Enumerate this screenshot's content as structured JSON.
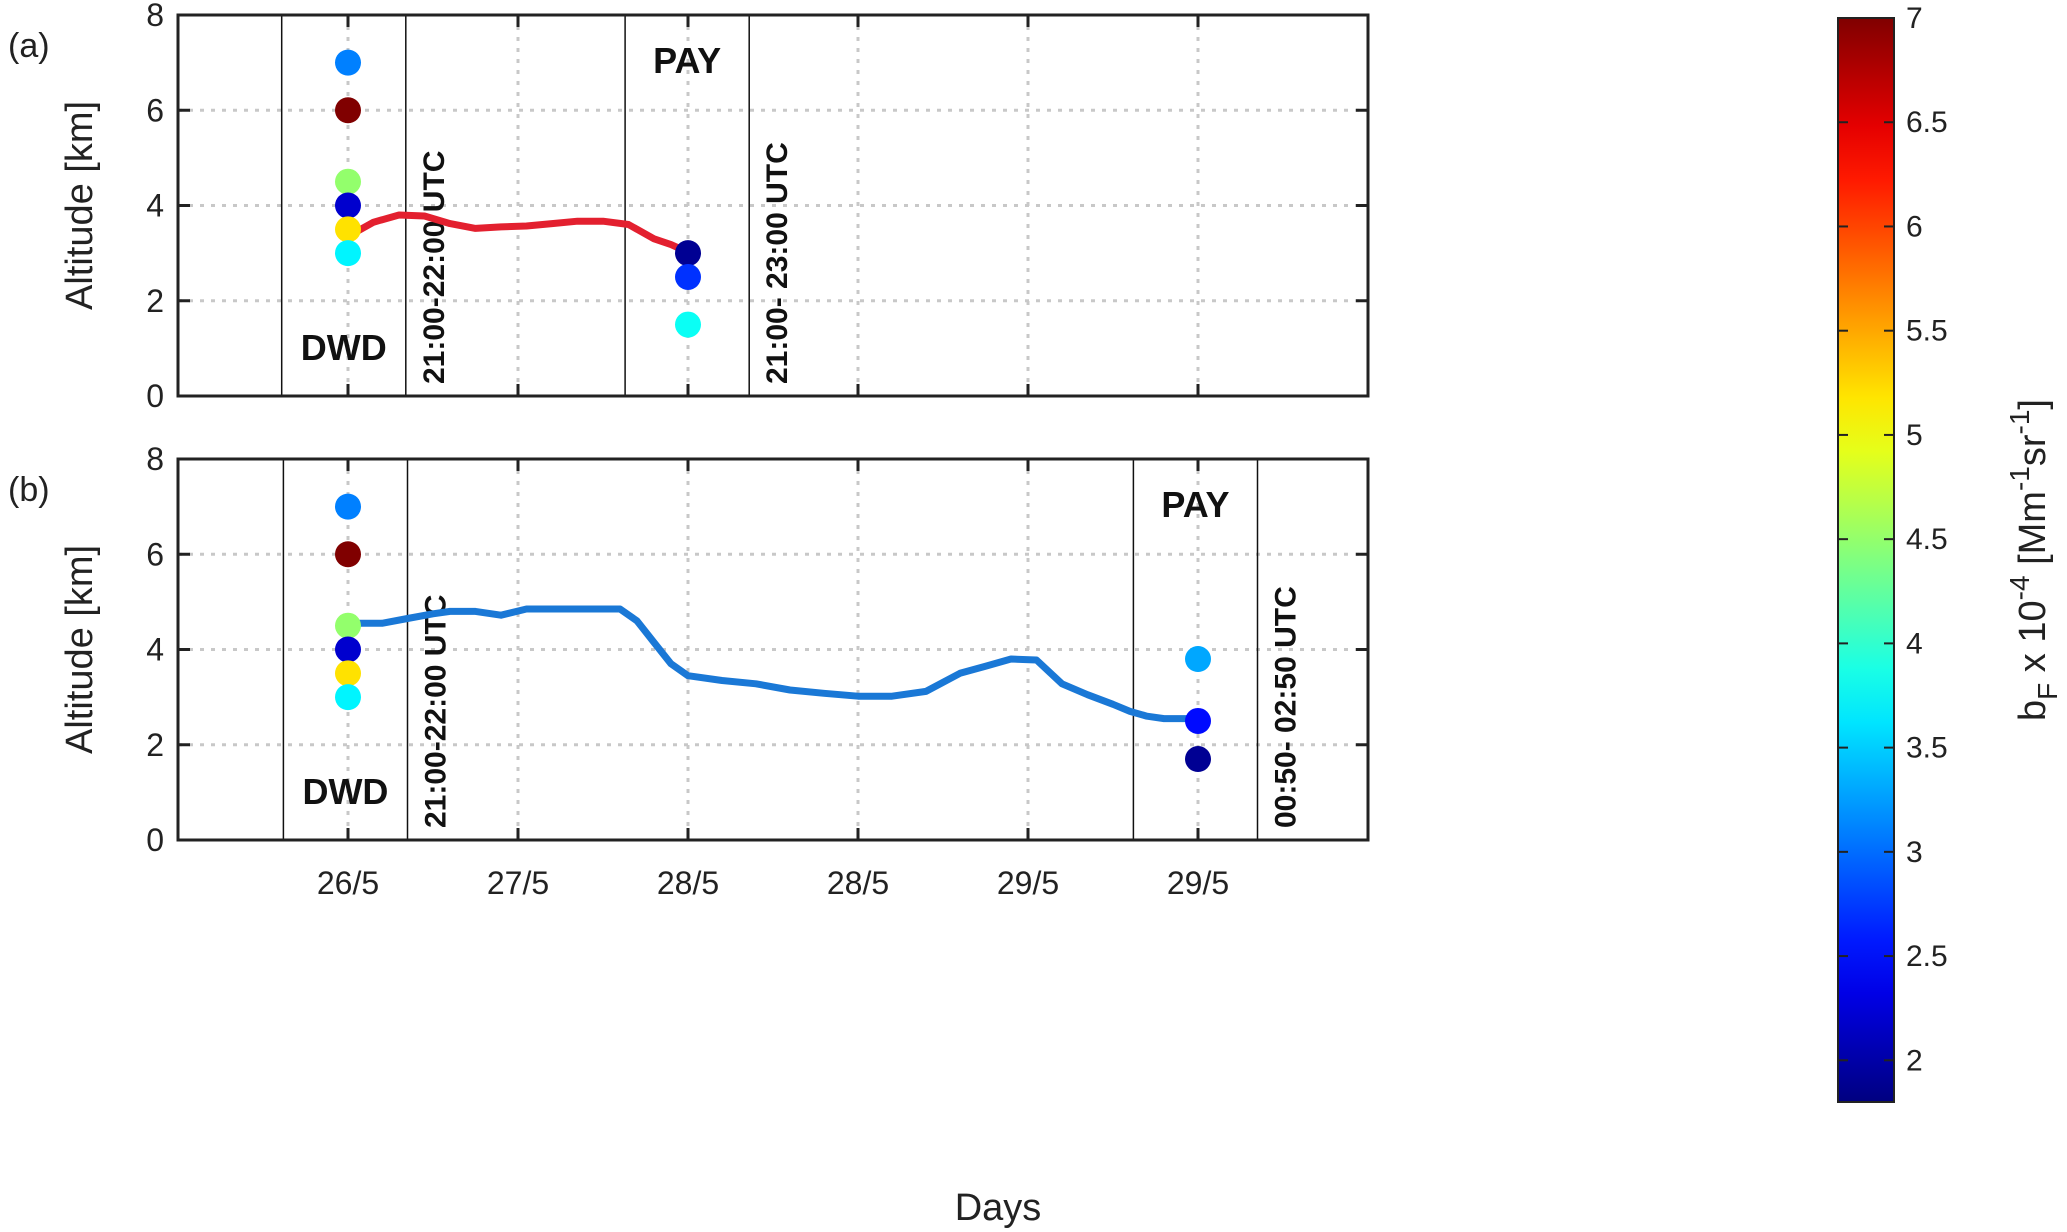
{
  "chart_data": [
    {
      "type": "line",
      "panel_label": "(a)",
      "ylabel": "Altitude [km]",
      "ylim": [
        0,
        8
      ],
      "yticks": [
        0,
        2,
        4,
        6,
        8
      ],
      "xlim": [
        0,
        7
      ],
      "xticks": [
        1,
        2,
        3,
        4,
        5,
        6
      ],
      "grid": true,
      "line": {
        "color": "#e3202f",
        "x": [
          0.05,
          0.15,
          0.3,
          0.45,
          0.6,
          0.75,
          0.9,
          1.05,
          1.2,
          1.35,
          1.5,
          1.65,
          1.8,
          1.9,
          2.0
        ],
        "y": [
          3.45,
          3.65,
          3.8,
          3.78,
          3.62,
          3.52,
          3.55,
          3.57,
          3.62,
          3.67,
          3.67,
          3.6,
          3.3,
          3.18,
          3.02
        ]
      },
      "points": [
        {
          "x": 0,
          "y": 7.0,
          "value": 3.1
        },
        {
          "x": 0,
          "y": 6.0,
          "value": 7.0
        },
        {
          "x": 0,
          "y": 4.5,
          "value": 4.5
        },
        {
          "x": 0,
          "y": 4.0,
          "value": 2.2
        },
        {
          "x": 0,
          "y": 3.5,
          "value": 5.2
        },
        {
          "x": 0,
          "y": 3.0,
          "value": 3.7
        },
        {
          "x": 2,
          "y": 3.0,
          "value": 1.9
        },
        {
          "x": 2,
          "y": 2.5,
          "value": 2.7
        },
        {
          "x": 2,
          "y": 1.5,
          "value": 3.8
        }
      ],
      "boxes": [
        {
          "x0": -0.39,
          "x1": 0.34,
          "name": "DWD",
          "name_pos": "bottom",
          "time": "21:00-22:00 UTC"
        },
        {
          "x0": 1.63,
          "x1": 2.36,
          "name": "PAY",
          "name_pos": "top",
          "time": "21:00- 23:00 UTC"
        }
      ]
    },
    {
      "type": "line",
      "panel_label": "(b)",
      "ylabel": "Altitude [km]",
      "xlabel": "Days",
      "ylim": [
        0,
        8
      ],
      "yticks": [
        0,
        2,
        4,
        6,
        8
      ],
      "xlim": [
        0,
        7
      ],
      "xticks": [
        1,
        2,
        3,
        4,
        5,
        6
      ],
      "xticklabels": [
        "26/5",
        "27/5",
        "28/5",
        "28/5",
        "29/5",
        "29/5"
      ],
      "grid": true,
      "line": {
        "color": "#1a78d6",
        "x": [
          0.05,
          0.2,
          0.35,
          0.5,
          0.6,
          0.75,
          0.9,
          1.05,
          1.2,
          1.4,
          1.6,
          1.7,
          1.8,
          1.9,
          2.0,
          2.2,
          2.4,
          2.6,
          2.8,
          3.0,
          3.2,
          3.4,
          3.6,
          3.75,
          3.9,
          4.05,
          4.2,
          4.35,
          4.5,
          4.6,
          4.7,
          4.8,
          4.9,
          5.0
        ],
        "y": [
          4.55,
          4.55,
          4.65,
          4.75,
          4.8,
          4.8,
          4.72,
          4.85,
          4.85,
          4.85,
          4.85,
          4.6,
          4.15,
          3.7,
          3.45,
          3.35,
          3.28,
          3.15,
          3.08,
          3.02,
          3.02,
          3.12,
          3.5,
          3.65,
          3.8,
          3.78,
          3.28,
          3.05,
          2.85,
          2.7,
          2.6,
          2.55,
          2.55,
          2.55
        ]
      },
      "points": [
        {
          "x": 0,
          "y": 7.0,
          "value": 3.1
        },
        {
          "x": 0,
          "y": 6.0,
          "value": 7.0
        },
        {
          "x": 0,
          "y": 4.5,
          "value": 4.5
        },
        {
          "x": 0,
          "y": 4.0,
          "value": 2.2
        },
        {
          "x": 0,
          "y": 3.5,
          "value": 5.2
        },
        {
          "x": 0,
          "y": 3.0,
          "value": 3.7
        },
        {
          "x": 5,
          "y": 3.8,
          "value": 3.3
        },
        {
          "x": 5,
          "y": 2.5,
          "value": 2.5
        },
        {
          "x": 5,
          "y": 1.7,
          "value": 1.9
        }
      ],
      "boxes": [
        {
          "x0": -0.38,
          "x1": 0.35,
          "name": "DWD",
          "name_pos": "bottom",
          "time": "21:00-22:00 UTC"
        },
        {
          "x0": 4.62,
          "x1": 5.35,
          "name": "PAY",
          "name_pos": "top",
          "time": "00:50- 02:50 UTC"
        }
      ]
    }
  ],
  "colorbar": {
    "colormap": "jet",
    "range": [
      1.8,
      7
    ],
    "ticks": [
      2,
      2.5,
      3,
      3.5,
      4,
      4.5,
      5,
      5.5,
      6,
      6.5,
      7
    ],
    "label_text": "bF x 10-4 [Mm-1sr-1]",
    "label_parts": {
      "b": "b",
      "sub_F": "F",
      "mid": " x 10",
      "sup_exp": "-4",
      "unit_open": " [Mm",
      "sup_m1": "-1",
      "sr": "sr",
      "sup_m1b": "-1",
      "close": "]"
    }
  }
}
